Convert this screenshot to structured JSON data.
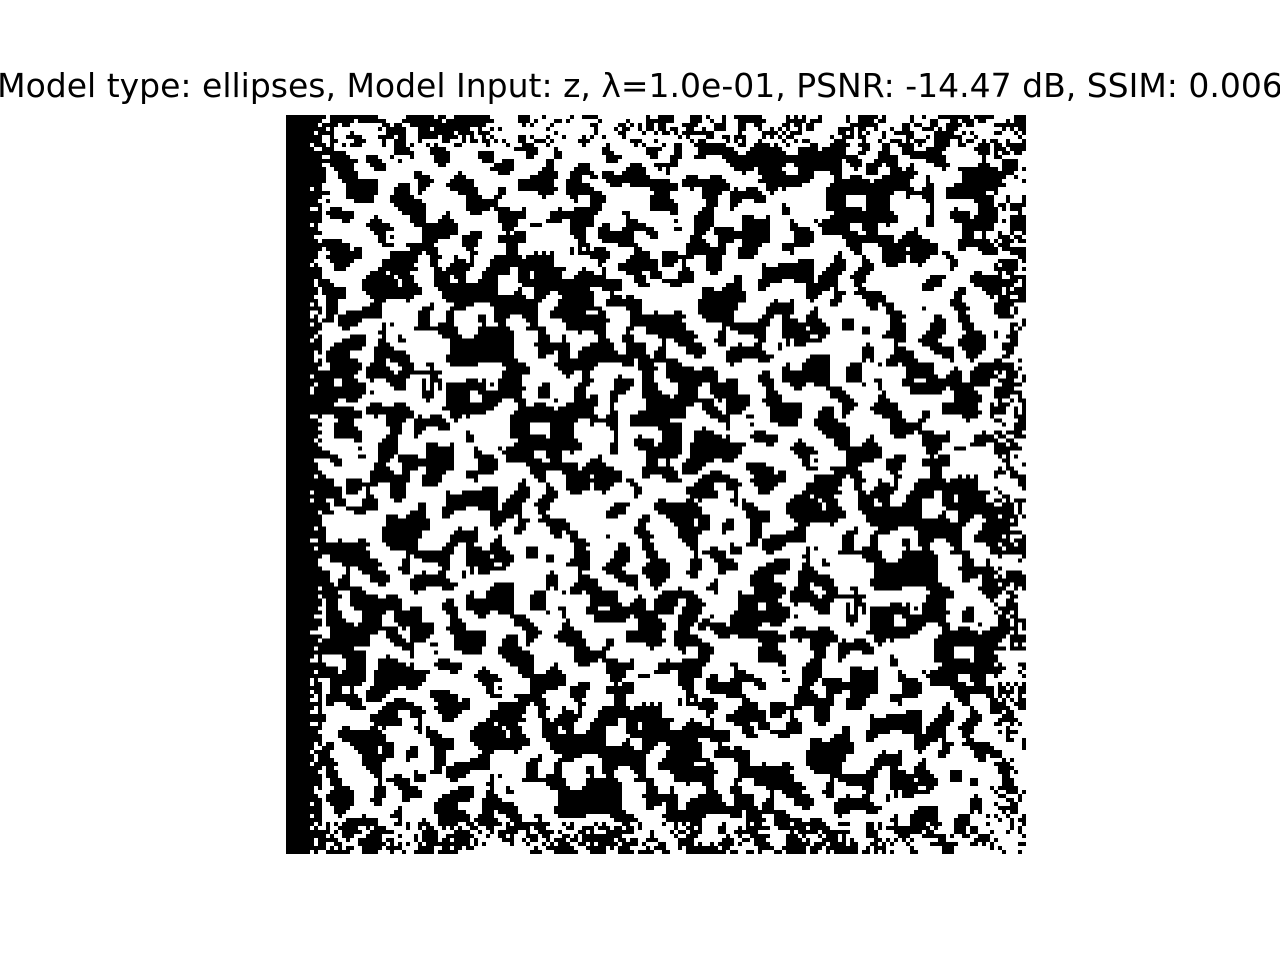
{
  "figure": {
    "title": "Model type: ellipses, Model Input: z, λ=1.0e-01, PSNR: -14.47 dB, SSIM: 0.006",
    "image": {
      "description_key": "binary-noise-reconstruction",
      "grid": 185,
      "colors": {
        "foreground": "#000000",
        "background": "#ffffff"
      }
    }
  }
}
